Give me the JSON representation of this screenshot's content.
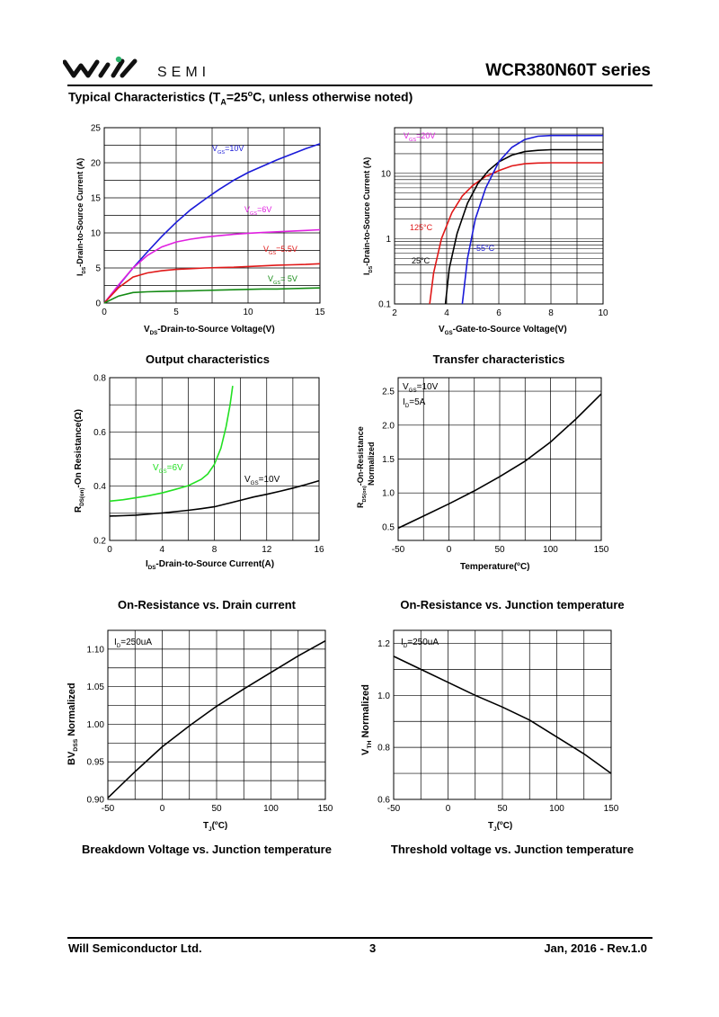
{
  "header": {
    "logo_text": "SEMI",
    "series_title": "WCR380N60T  series",
    "section_title_parts": [
      "Typical Characteristics (T",
      "A",
      "=25",
      "o",
      "C, unless otherwise noted)"
    ]
  },
  "captions": {
    "output": "Output characteristics",
    "transfer": "Transfer characteristics",
    "ron_id": "On-Resistance vs. Drain current",
    "ron_tj": "On-Resistance vs. Junction temperature",
    "bv_tj": "Breakdown Voltage vs. Junction temperature",
    "vth_tj": "Threshold voltage vs. Junction temperature"
  },
  "footer": {
    "company": "Will Semiconductor Ltd.",
    "page_number": "3",
    "date_rev": "Jan, 2016 - Rev.1.0"
  },
  "colors": {
    "blue": "#1a1ad8",
    "magenta": "#e020e0",
    "red": "#e01818",
    "green": "#138a13",
    "lime": "#22e022",
    "black": "#000000",
    "grid": "#000000"
  },
  "chart_data": [
    {
      "id": "output",
      "type": "line",
      "xlim": [
        0,
        15
      ],
      "ylim": [
        0,
        25
      ],
      "xticks": [
        "0",
        "5",
        "10",
        "15"
      ],
      "yticks": [
        "0",
        "5",
        "10",
        "15",
        "20",
        "25"
      ],
      "xlabel": [
        "V",
        "DS",
        "-Drain-to-Source Voltage(V)"
      ],
      "ylabel": [
        "I",
        "DS",
        "-Drain-to-Source Current (A)"
      ],
      "grid": true,
      "series": [
        {
          "name": [
            "V",
            "GS",
            "=10V"
          ],
          "color": "blue",
          "x": [
            0,
            1,
            2,
            3,
            4,
            5,
            6,
            7,
            8,
            9,
            10,
            11,
            12,
            13,
            14,
            15
          ],
          "y": [
            0,
            2.5,
            5,
            7.3,
            9.5,
            11.5,
            13.3,
            14.8,
            16.2,
            17.5,
            18.6,
            19.5,
            20.4,
            21.2,
            22.0,
            22.7
          ]
        },
        {
          "name": [
            "V",
            "GS",
            "=6V"
          ],
          "color": "magenta",
          "x": [
            0,
            1,
            2,
            3,
            4,
            5,
            6,
            7,
            8,
            9,
            10,
            11,
            12,
            13,
            14,
            15
          ],
          "y": [
            0,
            2.6,
            5.0,
            6.8,
            8.0,
            8.7,
            9.1,
            9.4,
            9.6,
            9.8,
            9.95,
            10.05,
            10.15,
            10.25,
            10.35,
            10.45
          ]
        },
        {
          "name": [
            "V",
            "GS",
            "=5.5V"
          ],
          "color": "red",
          "x": [
            0,
            1,
            2,
            3,
            4,
            5,
            6,
            7,
            8,
            9,
            10,
            11,
            12,
            13,
            14,
            15
          ],
          "y": [
            0,
            2.2,
            3.7,
            4.3,
            4.6,
            4.8,
            4.9,
            5.0,
            5.05,
            5.1,
            5.2,
            5.3,
            5.4,
            5.45,
            5.5,
            5.6
          ]
        },
        {
          "name": [
            "V",
            "GS",
            "= 5V"
          ],
          "color": "green",
          "x": [
            0,
            1,
            2,
            3,
            4,
            5,
            6,
            7,
            8,
            9,
            10,
            11,
            12,
            13,
            14,
            15
          ],
          "y": [
            0,
            1.0,
            1.5,
            1.6,
            1.65,
            1.7,
            1.75,
            1.8,
            1.85,
            1.9,
            1.95,
            2.0,
            2.0,
            2.05,
            2.1,
            2.15
          ]
        }
      ]
    },
    {
      "id": "transfer",
      "type": "line",
      "xlim": [
        2,
        10
      ],
      "ylim": [
        0.1,
        50
      ],
      "ylog": true,
      "xticks": [
        "2",
        "4",
        "6",
        "8",
        "10"
      ],
      "yticks": [
        {
          "v": 0.1,
          "t": "0.1"
        },
        {
          "v": 1,
          "t": "1"
        },
        {
          "v": 10,
          "t": "10"
        }
      ],
      "xlabel": [
        "V",
        "GS",
        "-Gate-to-Source Voltage(V)"
      ],
      "ylabel": [
        "I",
        "DS",
        "-Drain-to-Source Current (A)"
      ],
      "grid": true,
      "annotation": [
        "V",
        "GS",
        "=20V"
      ],
      "series": [
        {
          "name": "125°C",
          "color": "red",
          "x": [
            3.35,
            3.5,
            3.8,
            4.2,
            4.6,
            5.0,
            5.5,
            6.0,
            6.5,
            7.0,
            7.5,
            8.0,
            9.0,
            10.0
          ],
          "y": [
            0.1,
            0.3,
            1.0,
            2.5,
            4.5,
            6.5,
            9.0,
            11.0,
            13.0,
            14.0,
            14.4,
            14.5,
            14.5,
            14.5
          ]
        },
        {
          "name": "25°C",
          "color": "black",
          "x": [
            3.95,
            4.1,
            4.4,
            4.8,
            5.2,
            5.6,
            6.0,
            6.5,
            7.0,
            7.5,
            8.0,
            9.0,
            10.0
          ],
          "y": [
            0.1,
            0.35,
            1.2,
            3.5,
            7.0,
            11.0,
            15.0,
            19.0,
            21.5,
            22.5,
            23.0,
            23.0,
            23.0
          ]
        },
        {
          "name": "-55°C",
          "color": "blue",
          "x": [
            4.6,
            4.8,
            5.1,
            5.5,
            6.0,
            6.5,
            7.0,
            7.5,
            8.0,
            9.0,
            10.0
          ],
          "y": [
            0.1,
            0.5,
            2.0,
            6.0,
            15.0,
            25.0,
            33.0,
            37.0,
            38.0,
            38.0,
            38.0
          ]
        }
      ]
    },
    {
      "id": "ron_id",
      "type": "line",
      "xlim": [
        0,
        16
      ],
      "ylim": [
        0.2,
        0.8
      ],
      "xticks": [
        "0",
        "4",
        "8",
        "12",
        "16"
      ],
      "yticks": [
        "0.2",
        "0.4",
        "0.6",
        "0.8"
      ],
      "xlabel": [
        "I",
        "DS",
        "-Drain-to-Source Current(A)"
      ],
      "ylabel": [
        "R",
        "DS(on)",
        "-On Resistance(Ω)"
      ],
      "grid": true,
      "series": [
        {
          "name": [
            "V",
            "GS",
            "=6V"
          ],
          "color": "lime",
          "x": [
            0,
            1,
            2,
            3,
            4,
            5,
            6,
            7,
            7.5,
            8,
            8.5,
            8.9,
            9.2,
            9.4
          ],
          "y": [
            0.345,
            0.35,
            0.357,
            0.365,
            0.375,
            0.388,
            0.402,
            0.425,
            0.445,
            0.48,
            0.54,
            0.62,
            0.7,
            0.77
          ]
        },
        {
          "name": [
            "V",
            "GS",
            "=10V"
          ],
          "color": "black",
          "x": [
            0,
            1,
            2,
            3,
            4,
            5,
            6,
            7,
            8,
            9,
            10,
            11,
            12,
            13,
            14,
            15,
            16
          ],
          "y": [
            0.29,
            0.291,
            0.293,
            0.297,
            0.301,
            0.306,
            0.311,
            0.317,
            0.324,
            0.336,
            0.348,
            0.36,
            0.37,
            0.381,
            0.393,
            0.406,
            0.42
          ]
        }
      ]
    },
    {
      "id": "ron_tj",
      "type": "line",
      "xlim": [
        -50,
        150
      ],
      "ylim": [
        0.3,
        2.7
      ],
      "xticks": [
        "-50",
        "0",
        "50",
        "100",
        "150"
      ],
      "yticks": [
        "0.5",
        "1.0",
        "1.5",
        "2.0",
        "2.5"
      ],
      "xlabel": [
        "Temperature(",
        "o",
        "C)"
      ],
      "ylabel": [
        "R",
        "DS(on)",
        "-On-Resistance",
        "Normalized"
      ],
      "grid": true,
      "annotations": [
        [
          "V",
          "GS",
          "=10V"
        ],
        [
          "I",
          "D",
          "=5A"
        ]
      ],
      "series": [
        {
          "color": "black",
          "x": [
            -50,
            -25,
            0,
            25,
            50,
            75,
            100,
            125,
            150
          ],
          "y": [
            0.48,
            0.66,
            0.84,
            1.03,
            1.24,
            1.47,
            1.75,
            2.09,
            2.46
          ]
        }
      ]
    },
    {
      "id": "bv_tj",
      "type": "line",
      "xlim": [
        -50,
        150
      ],
      "ylim": [
        0.9,
        1.125
      ],
      "xticks": [
        "-50",
        "0",
        "50",
        "100",
        "150"
      ],
      "yticks": [
        "0.90",
        "0.95",
        "1.00",
        "1.05",
        "1.10"
      ],
      "xlabel": [
        "T",
        "J",
        "(",
        "o",
        "C)"
      ],
      "ylabel": [
        "BV",
        "DSS",
        " Normalized"
      ],
      "grid": true,
      "annotation": [
        "I",
        "D",
        "=250uA"
      ],
      "series": [
        {
          "color": "black",
          "x": [
            -50,
            -25,
            0,
            25,
            50,
            75,
            100,
            125,
            150
          ],
          "y": [
            0.902,
            0.937,
            0.97,
            0.998,
            1.024,
            1.047,
            1.069,
            1.091,
            1.111
          ]
        }
      ]
    },
    {
      "id": "vth_tj",
      "type": "line",
      "xlim": [
        -50,
        150
      ],
      "ylim": [
        0.6,
        1.25
      ],
      "xticks": [
        "-50",
        "0",
        "50",
        "100",
        "150"
      ],
      "yticks": [
        "0.6",
        "0.8",
        "1.0",
        "1.2"
      ],
      "xlabel": [
        "T",
        "J",
        "(",
        "o",
        "C)"
      ],
      "ylabel": [
        "V",
        "TH",
        " Normalized"
      ],
      "grid": true,
      "annotation": [
        "I",
        "D",
        "=250uA"
      ],
      "series": [
        {
          "color": "black",
          "x": [
            -50,
            -25,
            0,
            25,
            50,
            75,
            100,
            125,
            150
          ],
          "y": [
            1.15,
            1.1,
            1.05,
            1.0,
            0.955,
            0.905,
            0.84,
            0.775,
            0.7
          ]
        }
      ]
    }
  ]
}
